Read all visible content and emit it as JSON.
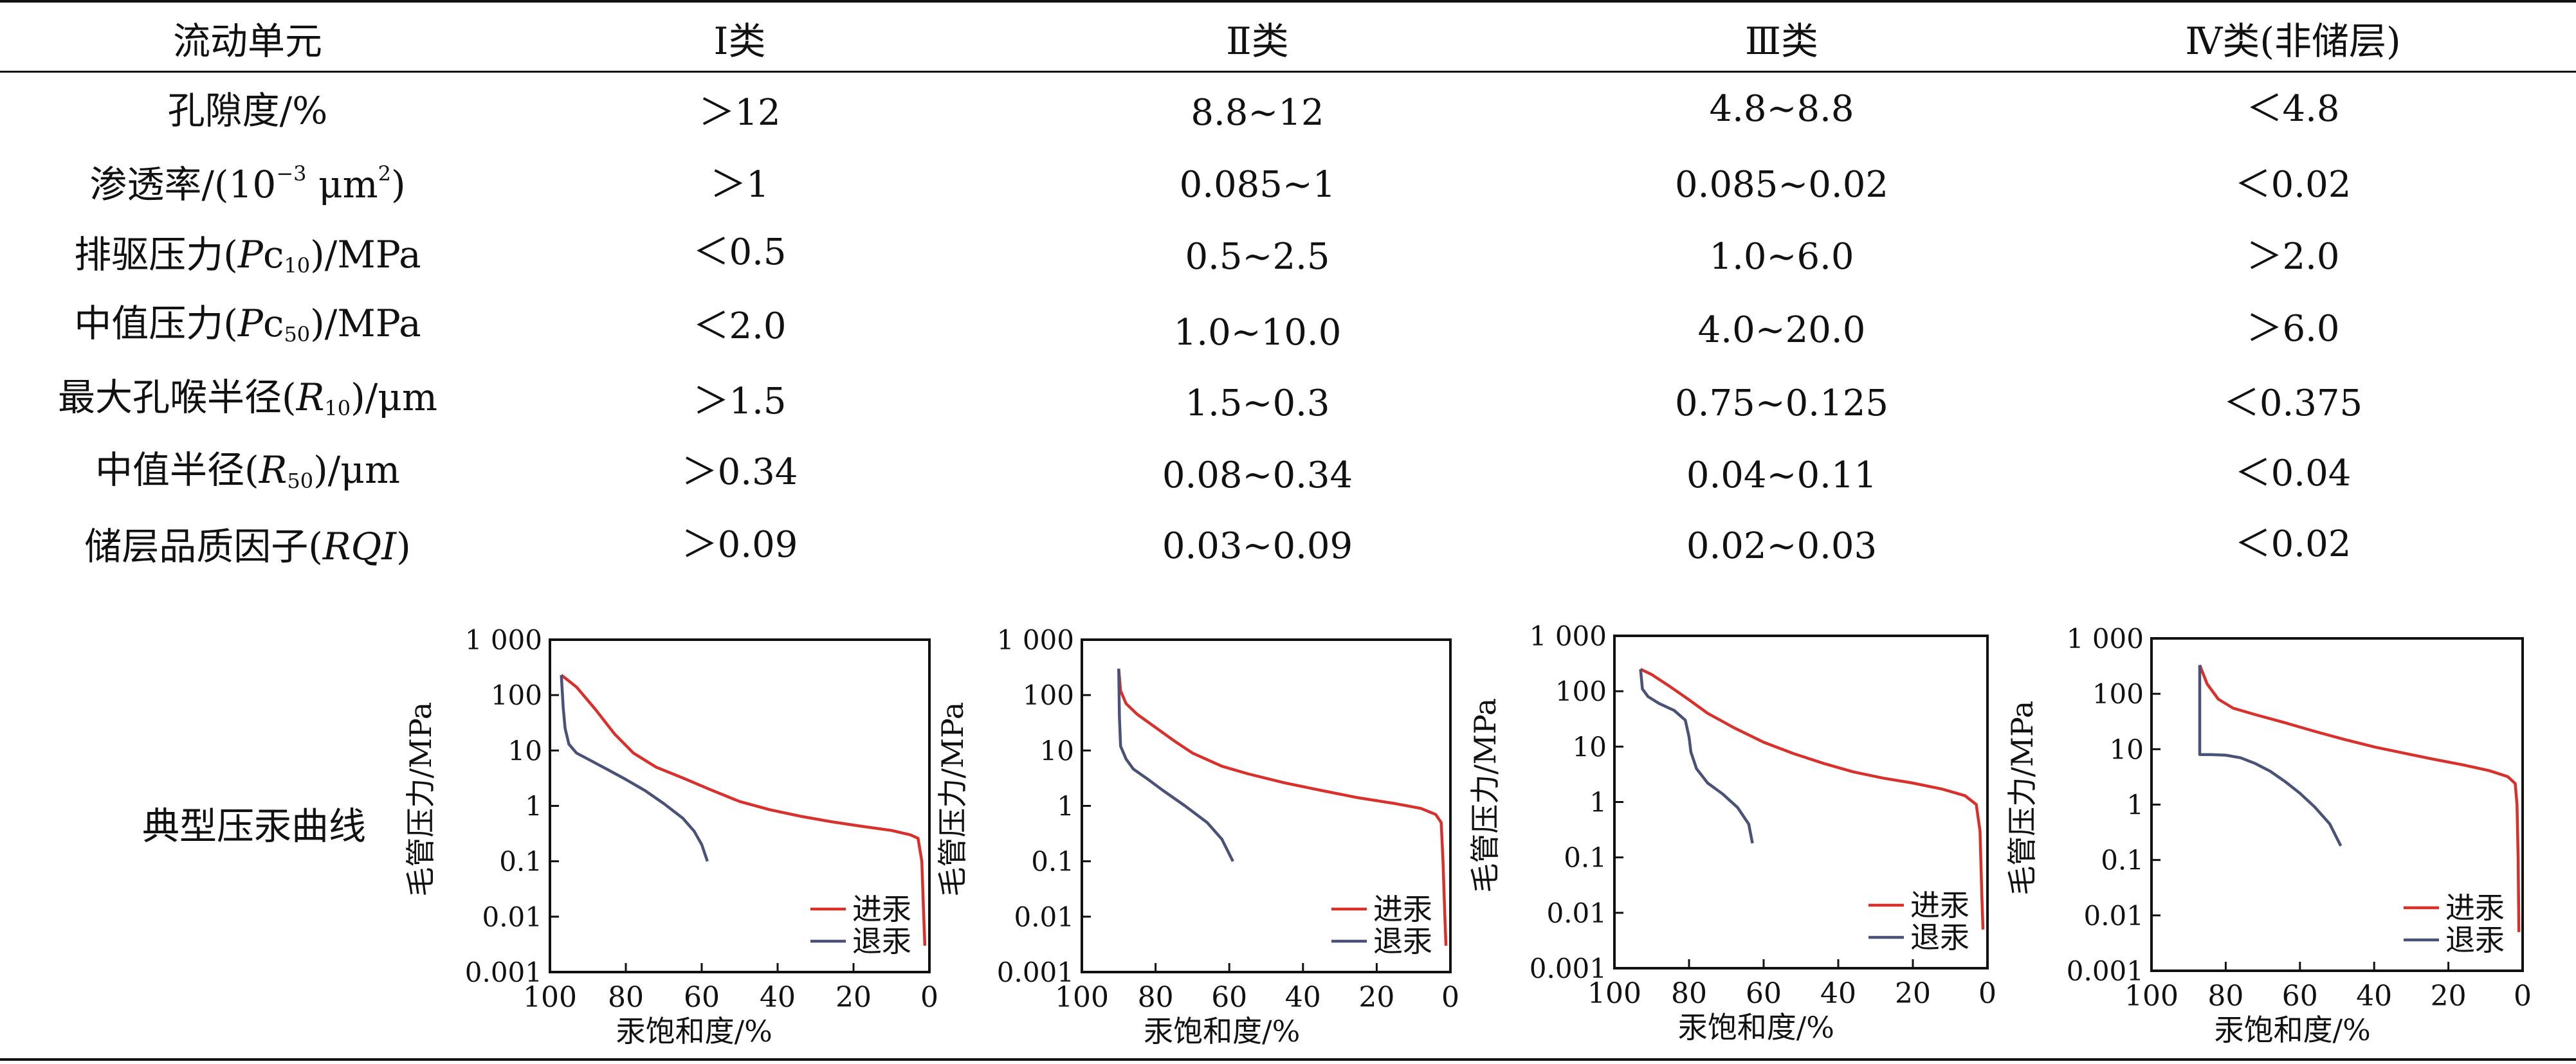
{
  "table": {
    "headers": [
      "流动单元",
      "Ⅰ类",
      "Ⅱ类",
      "Ⅲ类",
      "Ⅳ类(非储层)"
    ],
    "rows": [
      {
        "label": "孔隙度/%",
        "values": [
          "＞12",
          "8.8~12",
          "4.8~8.8",
          "＜4.8"
        ]
      },
      {
        "label_html": "渗透率/(10<sup>−3</sup> μm<sup>2</sup>)",
        "values": [
          "＞1",
          "0.085~1",
          "0.085~0.02",
          "＜0.02"
        ]
      },
      {
        "label_html": "排驱压力(<i>P</i>c<sub>10</sub>)/MPa",
        "values": [
          "＜0.5",
          "0.5~2.5",
          "1.0~6.0",
          "＞2.0"
        ]
      },
      {
        "label_html": "中值压力(<i>P</i>c<sub>50</sub>)/MPa",
        "values": [
          "＜2.0",
          "1.0~10.0",
          "4.0~20.0",
          "＞6.0"
        ]
      },
      {
        "label_html": "最大孔喉半径(<i>R</i><sub>10</sub>)/μm",
        "values": [
          "＞1.5",
          "1.5~0.3",
          "0.75~0.125",
          "＜0.375"
        ]
      },
      {
        "label_html": "中值半径(<i>R</i><sub>50</sub>)/μm",
        "values": [
          "＞0.34",
          "0.08~0.34",
          "0.04~0.11",
          "＜0.04"
        ]
      },
      {
        "label_html": "储层品质因子(<i>RQI</i>)",
        "values": [
          "＞0.09",
          "0.03~0.09",
          "0.02~0.03",
          "＜0.02"
        ]
      }
    ],
    "curve_row_label": "典型压汞曲线"
  },
  "chart_data": [
    {
      "type": "line",
      "xlabel": "汞饱和度/%",
      "ylabel": "毛管压力/MPa",
      "xlim": [
        100,
        0
      ],
      "ylim": [
        0.001,
        1000
      ],
      "y_scale": "log",
      "x_ticks": [
        "100",
        "80",
        "60",
        "40",
        "20",
        "0"
      ],
      "y_ticks": [
        "1 000",
        "100",
        "10",
        "1",
        "0.1",
        "0.01",
        "0.001"
      ],
      "legend_position": "bottom-right",
      "series": [
        {
          "name": "进汞",
          "color": "#d9302c",
          "points": [
            [
              97,
              230
            ],
            [
              93,
              140
            ],
            [
              88,
              55
            ],
            [
              83,
              20
            ],
            [
              78,
              9
            ],
            [
              72,
              5
            ],
            [
              65,
              3.2
            ],
            [
              58,
              2
            ],
            [
              50,
              1.2
            ],
            [
              42,
              0.85
            ],
            [
              34,
              0.65
            ],
            [
              26,
              0.52
            ],
            [
              18,
              0.43
            ],
            [
              10,
              0.36
            ],
            [
              5,
              0.3
            ],
            [
              3,
              0.26
            ],
            [
              2,
              0.1
            ],
            [
              1.5,
              0.01
            ],
            [
              1.2,
              0.003
            ]
          ]
        },
        {
          "name": "退汞",
          "color": "#4a5278",
          "points": [
            [
              97,
              230
            ],
            [
              96.5,
              60
            ],
            [
              96,
              25
            ],
            [
              95,
              13
            ],
            [
              93,
              9
            ],
            [
              90,
              7
            ],
            [
              85,
              4.6
            ],
            [
              80,
              3
            ],
            [
              75,
              1.9
            ],
            [
              70,
              1.1
            ],
            [
              65,
              0.6
            ],
            [
              62,
              0.35
            ],
            [
              60,
              0.2
            ],
            [
              58.5,
              0.1
            ]
          ]
        }
      ]
    },
    {
      "type": "line",
      "xlabel": "汞饱和度/%",
      "ylabel": "毛管压力/MPa",
      "xlim": [
        100,
        0
      ],
      "ylim": [
        0.001,
        1000
      ],
      "y_scale": "log",
      "x_ticks": [
        "100",
        "80",
        "60",
        "40",
        "20",
        "0"
      ],
      "y_ticks": [
        "1 000",
        "100",
        "10",
        "1",
        "0.1",
        "0.01",
        "0.001"
      ],
      "legend_position": "bottom-right",
      "series": [
        {
          "name": "进汞",
          "color": "#d9302c",
          "points": [
            [
              90,
              300
            ],
            [
              89.5,
              120
            ],
            [
              88,
              70
            ],
            [
              85,
              45
            ],
            [
              80,
              26
            ],
            [
              75,
              15
            ],
            [
              70,
              9
            ],
            [
              62,
              5.2
            ],
            [
              55,
              3.8
            ],
            [
              45,
              2.6
            ],
            [
              35,
              1.9
            ],
            [
              25,
              1.4
            ],
            [
              15,
              1.1
            ],
            [
              8,
              0.9
            ],
            [
              4,
              0.7
            ],
            [
              2.5,
              0.5
            ],
            [
              2,
              0.1
            ],
            [
              1.5,
              0.01
            ],
            [
              1.2,
              0.003
            ]
          ]
        },
        {
          "name": "退汞",
          "color": "#4a5278",
          "points": [
            [
              90,
              300
            ],
            [
              89.8,
              40
            ],
            [
              89.5,
              12
            ],
            [
              88,
              7
            ],
            [
              86,
              4.6
            ],
            [
              82,
              3
            ],
            [
              78,
              1.9
            ],
            [
              72,
              1
            ],
            [
              66,
              0.5
            ],
            [
              62,
              0.25
            ],
            [
              59,
              0.1
            ]
          ]
        }
      ]
    },
    {
      "type": "line",
      "xlabel": "汞饱和度/%",
      "ylabel": "毛管压力/MPa",
      "xlim": [
        100,
        0
      ],
      "ylim": [
        0.001,
        1000
      ],
      "y_scale": "log",
      "x_ticks": [
        "100",
        "80",
        "60",
        "40",
        "20",
        "0"
      ],
      "y_ticks": [
        "1 000",
        "100",
        "10",
        "1",
        "0.1",
        "0.01",
        "0.001"
      ],
      "legend_position": "bottom-right",
      "series": [
        {
          "name": "进汞",
          "color": "#d9302c",
          "points": [
            [
              93,
              250
            ],
            [
              90,
              200
            ],
            [
              85,
              120
            ],
            [
              80,
              70
            ],
            [
              75,
              40
            ],
            [
              68,
              22
            ],
            [
              60,
              12
            ],
            [
              52,
              7.5
            ],
            [
              44,
              5
            ],
            [
              36,
              3.5
            ],
            [
              28,
              2.7
            ],
            [
              20,
              2.2
            ],
            [
              12,
              1.7
            ],
            [
              6,
              1.3
            ],
            [
              3,
              0.9
            ],
            [
              2,
              0.3
            ],
            [
              1.5,
              0.02
            ],
            [
              1.2,
              0.005
            ]
          ]
        },
        {
          "name": "退汞",
          "color": "#4a5278",
          "points": [
            [
              93,
              250
            ],
            [
              92.5,
              110
            ],
            [
              91,
              80
            ],
            [
              88,
              60
            ],
            [
              84,
              45
            ],
            [
              81,
              30
            ],
            [
              80,
              15
            ],
            [
              79.5,
              8
            ],
            [
              78,
              4
            ],
            [
              75,
              2.2
            ],
            [
              71,
              1.4
            ],
            [
              67,
              0.8
            ],
            [
              64,
              0.4
            ],
            [
              63,
              0.18
            ]
          ]
        }
      ]
    },
    {
      "type": "line",
      "xlabel": "汞饱和度/%",
      "ylabel": "毛管压力/MPa",
      "xlim": [
        100,
        0
      ],
      "ylim": [
        0.001,
        1000
      ],
      "y_scale": "log",
      "x_ticks": [
        "100",
        "80",
        "60",
        "40",
        "20",
        "0"
      ],
      "y_ticks": [
        "1 000",
        "100",
        "10",
        "1",
        "0.1",
        "0.01",
        "0.001"
      ],
      "legend_position": "bottom-right",
      "series": [
        {
          "name": "进汞",
          "color": "#d9302c",
          "points": [
            [
              87,
              330
            ],
            [
              85,
              150
            ],
            [
              82,
              80
            ],
            [
              78,
              55
            ],
            [
              72,
              42
            ],
            [
              64,
              30
            ],
            [
              56,
              21
            ],
            [
              48,
              15
            ],
            [
              40,
              11
            ],
            [
              32,
              8.5
            ],
            [
              24,
              6.6
            ],
            [
              16,
              5.2
            ],
            [
              9,
              4.1
            ],
            [
              4,
              3.2
            ],
            [
              2,
              2.4
            ],
            [
              1.5,
              1
            ],
            [
              1.2,
              0.1
            ],
            [
              1,
              0.005
            ]
          ]
        },
        {
          "name": "退汞",
          "color": "#4a5278",
          "points": [
            [
              87,
              330
            ],
            [
              87,
              8
            ],
            [
              84,
              8
            ],
            [
              80,
              7.8
            ],
            [
              76,
              7
            ],
            [
              72,
              5.5
            ],
            [
              68,
              4
            ],
            [
              64,
              2.6
            ],
            [
              60,
              1.6
            ],
            [
              56,
              0.9
            ],
            [
              52,
              0.45
            ],
            [
              49,
              0.18
            ]
          ]
        }
      ]
    }
  ]
}
